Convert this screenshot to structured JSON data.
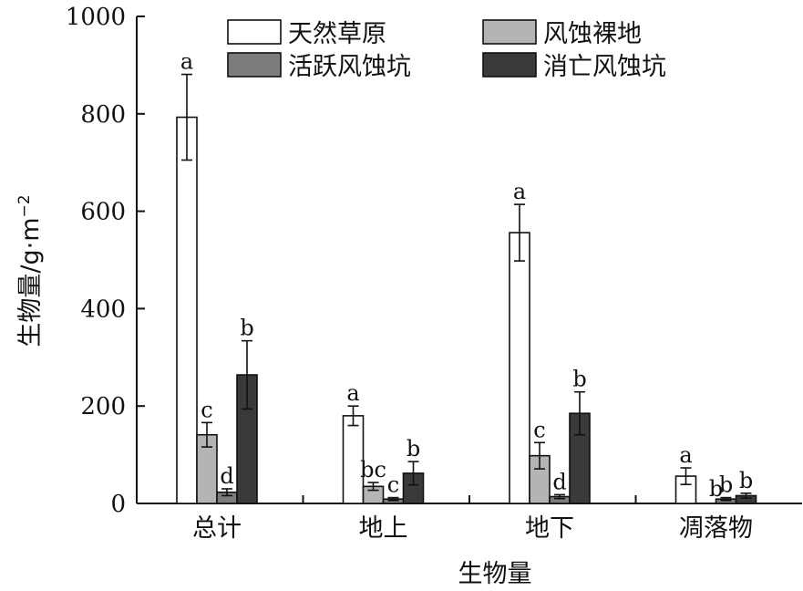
{
  "chart_data": {
    "type": "bar",
    "categories": [
      "总计",
      "地上",
      "地下",
      "凋落物"
    ],
    "xlabel": "生物量",
    "ylabel": {
      "text": "生物量/g·m",
      "superscript": "−2"
    },
    "ylim": [
      0,
      1000
    ],
    "yticks": [
      0,
      200,
      400,
      600,
      800,
      1000
    ],
    "grid": false,
    "legend_position": "top-right",
    "series": [
      {
        "name": "天然草原",
        "color": "#ffffff",
        "values": [
          793,
          180,
          556,
          56
        ],
        "errors": [
          88,
          20,
          58,
          17
        ],
        "labels": [
          "a",
          "a",
          "a",
          "a"
        ]
      },
      {
        "name": "风蚀裸地",
        "color": "#b4b4b4",
        "values": [
          141,
          35,
          98,
          0
        ],
        "errors": [
          25,
          8,
          27,
          0
        ],
        "labels": [
          "c",
          "bc",
          "c",
          ""
        ]
      },
      {
        "name": "活跃风蚀坑",
        "color": "#7c7c7c",
        "values": [
          23,
          9,
          14,
          9
        ],
        "errors": [
          7,
          3,
          4,
          3
        ],
        "labels": [
          "d",
          "c",
          "d",
          "b"
        ]
      },
      {
        "name": "消亡风蚀坑",
        "color": "#3a3a3a",
        "values": [
          264,
          62,
          185,
          16
        ],
        "errors": [
          70,
          24,
          44,
          5
        ],
        "labels": [
          "b",
          "b",
          "b",
          "b"
        ]
      }
    ],
    "extra_labels": [
      {
        "category_index": 3,
        "between": [
          1,
          2
        ],
        "text": "b"
      }
    ]
  }
}
